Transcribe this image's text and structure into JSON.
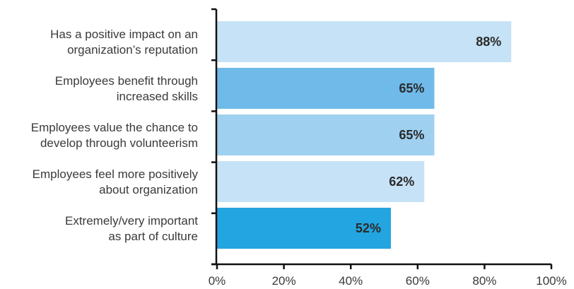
{
  "chart_data": {
    "type": "bar",
    "orientation": "horizontal",
    "title": "",
    "xlabel": "",
    "ylabel": "",
    "xlim": [
      0,
      100
    ],
    "grid": false,
    "categories": [
      [
        "Has a positive impact on an",
        "organization’s reputation"
      ],
      [
        "Employees benefit through",
        "increased skills"
      ],
      [
        "Employees value the chance to",
        "develop through volunteerism"
      ],
      [
        "Employees feel more positively",
        "about organization"
      ],
      [
        "Extremely/very important",
        "as part of culture"
      ]
    ],
    "values": [
      88,
      65,
      65,
      62,
      52
    ],
    "value_labels": [
      "88%",
      "65%",
      "65%",
      "62%",
      "52%"
    ],
    "x_ticks": [
      0,
      20,
      40,
      60,
      80,
      100
    ],
    "x_tick_labels": [
      "0%",
      "20%",
      "40%",
      "60%",
      "80%",
      "100%"
    ],
    "bar_colors": [
      "#c6e2f6",
      "#6fbae8",
      "#9fd0f0",
      "#c6e2f6",
      "#22a5e1"
    ],
    "axis_color": "#111111"
  }
}
